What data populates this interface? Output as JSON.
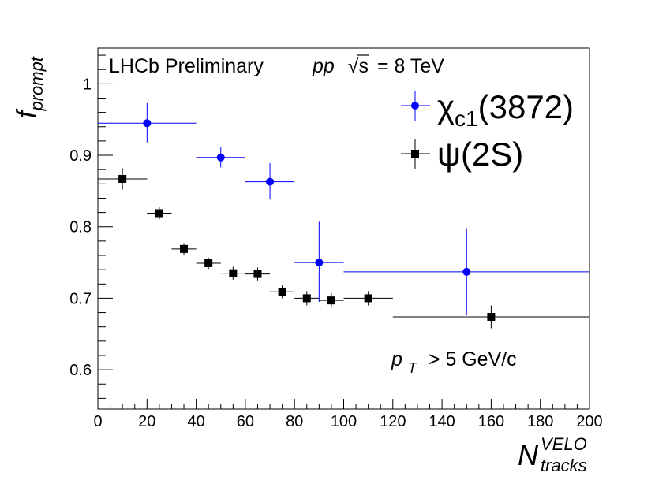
{
  "chart_data": {
    "type": "scatter",
    "title": "",
    "xlabel": {
      "main": "N",
      "sup": "VELO",
      "sub": "tracks"
    },
    "ylabel": {
      "main": "f",
      "sub": "prompt"
    },
    "xlim": [
      0,
      200
    ],
    "ylim": [
      0.545,
      1.05
    ],
    "x_ticks": [
      0,
      20,
      40,
      60,
      80,
      100,
      120,
      140,
      160,
      180,
      200
    ],
    "y_ticks": [
      0.6,
      0.7,
      0.8,
      0.9,
      1
    ],
    "y_tick_labels": [
      "0.6",
      "0.7",
      "0.8",
      "0.9",
      "1"
    ],
    "grid": false,
    "annotations": {
      "experiment": "LHCb Preliminary",
      "energy_pp": "pp",
      "energy_sqrt": "√s",
      "energy_value": "= 8 TeV",
      "cut_p": "p",
      "cut_sub": "T",
      "cut_text": "> 5 GeV/c"
    },
    "series": [
      {
        "name": "χc1(3872)",
        "legend_main": "χ",
        "legend_sub": "c1",
        "legend_rest": "(3872)",
        "color": "#0000ff",
        "marker": "circle",
        "points": [
          {
            "x": 20,
            "xlo": 0,
            "xhi": 40,
            "y": 0.945,
            "ylo": 0.918,
            "yhi": 0.973
          },
          {
            "x": 50,
            "xlo": 40,
            "xhi": 60,
            "y": 0.897,
            "ylo": 0.883,
            "yhi": 0.911
          },
          {
            "x": 70,
            "xlo": 60,
            "xhi": 80,
            "y": 0.863,
            "ylo": 0.838,
            "yhi": 0.889
          },
          {
            "x": 90,
            "xlo": 80,
            "xhi": 100,
            "y": 0.75,
            "ylo": 0.695,
            "yhi": 0.807
          },
          {
            "x": 150,
            "xlo": 100,
            "xhi": 200,
            "y": 0.737,
            "ylo": 0.676,
            "yhi": 0.798
          }
        ]
      },
      {
        "name": "ψ(2S)",
        "legend_main": "ψ",
        "legend_sub": "",
        "legend_rest": "(2S)",
        "color": "#000000",
        "marker": "square",
        "points": [
          {
            "x": 10,
            "xlo": 0,
            "xhi": 20,
            "y": 0.867,
            "ylo": 0.852,
            "yhi": 0.882
          },
          {
            "x": 25,
            "xlo": 20,
            "xhi": 30,
            "y": 0.819,
            "ylo": 0.81,
            "yhi": 0.828
          },
          {
            "x": 35,
            "xlo": 30,
            "xhi": 40,
            "y": 0.769,
            "ylo": 0.761,
            "yhi": 0.777
          },
          {
            "x": 45,
            "xlo": 40,
            "xhi": 50,
            "y": 0.749,
            "ylo": 0.741,
            "yhi": 0.757
          },
          {
            "x": 55,
            "xlo": 50,
            "xhi": 60,
            "y": 0.735,
            "ylo": 0.726,
            "yhi": 0.744
          },
          {
            "x": 65,
            "xlo": 60,
            "xhi": 70,
            "y": 0.734,
            "ylo": 0.725,
            "yhi": 0.743
          },
          {
            "x": 75,
            "xlo": 70,
            "xhi": 80,
            "y": 0.709,
            "ylo": 0.7,
            "yhi": 0.718
          },
          {
            "x": 85,
            "xlo": 80,
            "xhi": 90,
            "y": 0.7,
            "ylo": 0.69,
            "yhi": 0.71
          },
          {
            "x": 95,
            "xlo": 90,
            "xhi": 100,
            "y": 0.697,
            "ylo": 0.687,
            "yhi": 0.707
          },
          {
            "x": 110,
            "xlo": 100,
            "xhi": 120,
            "y": 0.7,
            "ylo": 0.69,
            "yhi": 0.71
          },
          {
            "x": 160,
            "xlo": 120,
            "xhi": 200,
            "y": 0.674,
            "ylo": 0.658,
            "yhi": 0.69
          }
        ]
      }
    ]
  }
}
